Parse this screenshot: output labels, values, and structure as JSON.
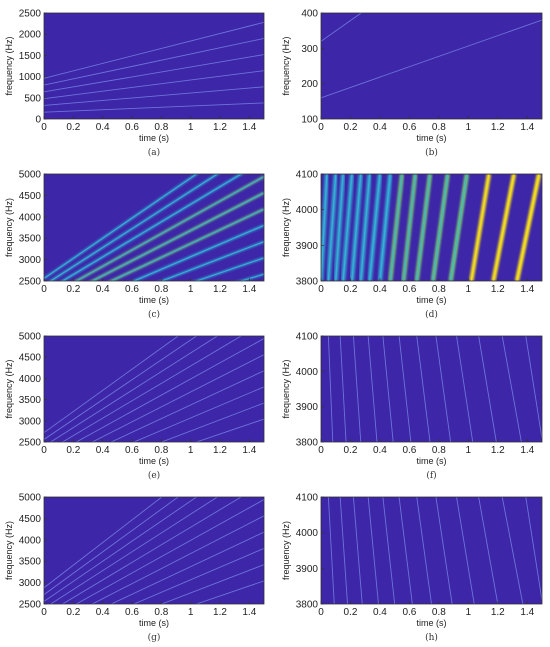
{
  "colors": {
    "background": "#3d26a8",
    "line_faint": "#7a86e8",
    "line_cyan": "#33b7d8",
    "line_green": "#79d36b",
    "line_yellow": "#f5df1b",
    "axis": "#333333"
  },
  "chart_data": [
    {
      "type": "heatmap",
      "panel": "(a)",
      "xlabel": "time (s)",
      "ylabel": "frequency (Hz)",
      "xlim": [
        0,
        1.5
      ],
      "ylim": [
        0,
        2500
      ],
      "xticks": [
        0,
        0.2,
        0.4,
        0.6,
        0.8,
        1,
        1.2,
        1.4
      ],
      "xtick_labels": [
        "0",
        "0.2",
        "0.4",
        "0.6",
        "0.8",
        "1",
        "1.2",
        "1.4"
      ],
      "yticks": [
        0,
        500,
        1000,
        1500,
        2000,
        2500
      ],
      "ytick_labels": [
        "0",
        "500",
        "1000",
        "1500",
        "2000",
        "2500"
      ],
      "series": [
        {
          "x": [
            0,
            1.5
          ],
          "y": [
            160,
            380
          ]
        },
        {
          "x": [
            0,
            1.5
          ],
          "y": [
            320,
            760
          ]
        },
        {
          "x": [
            0,
            1.5
          ],
          "y": [
            480,
            1140
          ]
        },
        {
          "x": [
            0,
            1.5
          ],
          "y": [
            640,
            1520
          ]
        },
        {
          "x": [
            0,
            1.5
          ],
          "y": [
            800,
            1900
          ]
        },
        {
          "x": [
            0,
            1.5
          ],
          "y": [
            960,
            2280
          ]
        }
      ],
      "style": "faint"
    },
    {
      "type": "heatmap",
      "panel": "(b)",
      "xlabel": "time (s)",
      "ylabel": "frequency (Hz)",
      "xlim": [
        0,
        1.5
      ],
      "ylim": [
        100,
        400
      ],
      "xticks": [
        0,
        0.2,
        0.4,
        0.6,
        0.8,
        1,
        1.2,
        1.4
      ],
      "xtick_labels": [
        "0",
        "0.2",
        "0.4",
        "0.6",
        "0.8",
        "1",
        "1.2",
        "1.4"
      ],
      "yticks": [
        100,
        200,
        300,
        400
      ],
      "ytick_labels": [
        "100",
        "200",
        "300",
        "400"
      ],
      "series": [
        {
          "x": [
            0,
            1.5
          ],
          "y": [
            160,
            380
          ]
        },
        {
          "x": [
            0,
            1.5
          ],
          "y": [
            320,
            760
          ]
        }
      ],
      "style": "faint"
    },
    {
      "type": "heatmap",
      "panel": "(c)",
      "xlabel": "time (s)",
      "ylabel": "frequency (Hz)",
      "xlim": [
        0,
        1.5
      ],
      "ylim": [
        2500,
        5000
      ],
      "xticks": [
        0,
        0.2,
        0.4,
        0.6,
        0.8,
        1,
        1.2,
        1.4
      ],
      "xtick_labels": [
        "0",
        "0.2",
        "0.4",
        "0.6",
        "0.8",
        "1",
        "1.2",
        "1.4"
      ],
      "yticks": [
        2500,
        3000,
        3500,
        4000,
        4500,
        5000
      ],
      "ytick_labels": [
        "2500",
        "3000",
        "3500",
        "4000",
        "4500",
        "5000"
      ],
      "series": [
        {
          "x": [
            0,
            1.5
          ],
          "y": [
            2560,
            6080
          ],
          "level": 0.45
        },
        {
          "x": [
            0,
            1.5
          ],
          "y": [
            2400,
            5700
          ],
          "level": 0.55
        },
        {
          "x": [
            0,
            1.5
          ],
          "y": [
            2240,
            5320
          ],
          "level": 0.6
        },
        {
          "x": [
            0,
            1.5
          ],
          "y": [
            2080,
            4940
          ],
          "level": 0.7
        },
        {
          "x": [
            0,
            1.5
          ],
          "y": [
            1920,
            4560
          ],
          "level": 0.85
        },
        {
          "x": [
            0,
            1.5
          ],
          "y": [
            1760,
            4180
          ],
          "level": 0.8
        },
        {
          "x": [
            0,
            1.5
          ],
          "y": [
            1600,
            3800
          ],
          "level": 0.65
        },
        {
          "x": [
            0,
            1.5
          ],
          "y": [
            1440,
            3420
          ],
          "level": 0.5
        },
        {
          "x": [
            0,
            1.5
          ],
          "y": [
            1280,
            3040
          ],
          "level": 0.4
        },
        {
          "x": [
            0,
            1.5
          ],
          "y": [
            1120,
            2660
          ],
          "level": 0.3
        }
      ],
      "style": "bright"
    },
    {
      "type": "heatmap",
      "panel": "(d)",
      "xlabel": "time (s)",
      "ylabel": "frequency (Hz)",
      "xlim": [
        0,
        1.5
      ],
      "ylim": [
        3800,
        4100
      ],
      "xticks": [
        0,
        0.2,
        0.4,
        0.6,
        0.8,
        1,
        1.2,
        1.4
      ],
      "xtick_labels": [
        "0",
        "0.2",
        "0.4",
        "0.6",
        "0.8",
        "1",
        "1.2",
        "1.4"
      ],
      "yticks": [
        3800,
        3900,
        4000,
        4100
      ],
      "ytick_labels": [
        "3800",
        "3900",
        "4000",
        "4100"
      ],
      "series": [
        {
          "x": [
            0.0,
            0.04
          ],
          "y": [
            3800,
            4100
          ],
          "level": 0.55
        },
        {
          "x": [
            0.05,
            0.1
          ],
          "y": [
            3800,
            4100
          ],
          "level": 0.55
        },
        {
          "x": [
            0.1,
            0.15
          ],
          "y": [
            3800,
            4100
          ],
          "level": 0.55
        },
        {
          "x": [
            0.15,
            0.21
          ],
          "y": [
            3800,
            4100
          ],
          "level": 0.6
        },
        {
          "x": [
            0.21,
            0.27
          ],
          "y": [
            3800,
            4100
          ],
          "level": 0.6
        },
        {
          "x": [
            0.27,
            0.33
          ],
          "y": [
            3800,
            4100
          ],
          "level": 0.6
        },
        {
          "x": [
            0.33,
            0.4
          ],
          "y": [
            3800,
            4100
          ],
          "level": 0.65
        },
        {
          "x": [
            0.4,
            0.47
          ],
          "y": [
            3800,
            4100
          ],
          "level": 0.65
        },
        {
          "x": [
            0.47,
            0.55
          ],
          "y": [
            3800,
            4100
          ],
          "level": 0.7
        },
        {
          "x": [
            0.56,
            0.64
          ],
          "y": [
            3800,
            4100
          ],
          "level": 0.7
        },
        {
          "x": [
            0.65,
            0.74
          ],
          "y": [
            3800,
            4100
          ],
          "level": 0.75
        },
        {
          "x": [
            0.76,
            0.86
          ],
          "y": [
            3800,
            4100
          ],
          "level": 0.8
        },
        {
          "x": [
            0.88,
            0.99
          ],
          "y": [
            3800,
            4100
          ],
          "level": 0.85
        },
        {
          "x": [
            1.02,
            1.14
          ],
          "y": [
            3800,
            4100
          ],
          "level": 0.9
        },
        {
          "x": [
            1.17,
            1.31
          ],
          "y": [
            3800,
            4100
          ],
          "level": 0.95
        },
        {
          "x": [
            1.33,
            1.48
          ],
          "y": [
            3800,
            4100
          ],
          "level": 1.0
        }
      ],
      "style": "wide"
    },
    {
      "type": "heatmap",
      "panel": "(e)",
      "xlabel": "time (s)",
      "ylabel": "frequency (Hz)",
      "xlim": [
        0,
        1.5
      ],
      "ylim": [
        2500,
        5000
      ],
      "xticks": [
        0,
        0.2,
        0.4,
        0.6,
        0.8,
        1,
        1.2,
        1.4
      ],
      "xtick_labels": [
        "0",
        "0.2",
        "0.4",
        "0.6",
        "0.8",
        "1",
        "1.2",
        "1.4"
      ],
      "yticks": [
        2500,
        3000,
        3500,
        4000,
        4500,
        5000
      ],
      "ytick_labels": [
        "2500",
        "3000",
        "3500",
        "4000",
        "4500",
        "5000"
      ],
      "series": [
        {
          "x": [
            0,
            1.5
          ],
          "y": [
            2720,
            6460
          ]
        },
        {
          "x": [
            0,
            1.5
          ],
          "y": [
            2560,
            6080
          ]
        },
        {
          "x": [
            0,
            1.5
          ],
          "y": [
            2400,
            5700
          ]
        },
        {
          "x": [
            0,
            1.5
          ],
          "y": [
            2240,
            5320
          ]
        },
        {
          "x": [
            0,
            1.5
          ],
          "y": [
            2080,
            4940
          ]
        },
        {
          "x": [
            0,
            1.5
          ],
          "y": [
            1920,
            4560
          ]
        },
        {
          "x": [
            0,
            1.5
          ],
          "y": [
            1760,
            4180
          ]
        },
        {
          "x": [
            0,
            1.5
          ],
          "y": [
            1600,
            3800
          ]
        },
        {
          "x": [
            0,
            1.5
          ],
          "y": [
            1440,
            3420
          ]
        },
        {
          "x": [
            0,
            1.5
          ],
          "y": [
            1280,
            3040
          ]
        }
      ],
      "style": "faint"
    },
    {
      "type": "heatmap",
      "panel": "(f)",
      "xlabel": "time (s)",
      "ylabel": "frequency (Hz)",
      "xlim": [
        0,
        1.5
      ],
      "ylim": [
        3800,
        4100
      ],
      "xticks": [
        0,
        0.2,
        0.4,
        0.6,
        0.8,
        1,
        1.2,
        1.4
      ],
      "xtick_labels": [
        "0",
        "0.2",
        "0.4",
        "0.6",
        "0.8",
        "1",
        "1.2",
        "1.4"
      ],
      "yticks": [
        3800,
        3900,
        4000,
        4100
      ],
      "ytick_labels": [
        "3800",
        "3900",
        "4000",
        "4100"
      ],
      "series": [
        {
          "x": [
            0.08,
            0.05
          ],
          "y": [
            3800,
            4100
          ]
        },
        {
          "x": [
            0.17,
            0.13
          ],
          "y": [
            3800,
            4100
          ]
        },
        {
          "x": [
            0.27,
            0.22
          ],
          "y": [
            3800,
            4100
          ]
        },
        {
          "x": [
            0.38,
            0.32
          ],
          "y": [
            3800,
            4100
          ]
        },
        {
          "x": [
            0.49,
            0.42
          ],
          "y": [
            3800,
            4100
          ]
        },
        {
          "x": [
            0.61,
            0.53
          ],
          "y": [
            3800,
            4100
          ]
        },
        {
          "x": [
            0.74,
            0.65
          ],
          "y": [
            3800,
            4100
          ]
        },
        {
          "x": [
            0.88,
            0.78
          ],
          "y": [
            3800,
            4100
          ]
        },
        {
          "x": [
            1.03,
            0.92
          ],
          "y": [
            3800,
            4100
          ]
        },
        {
          "x": [
            1.19,
            1.07
          ],
          "y": [
            3800,
            4100
          ]
        },
        {
          "x": [
            1.36,
            1.23
          ],
          "y": [
            3800,
            4100
          ]
        },
        {
          "x": [
            1.5,
            1.39
          ],
          "y": [
            3810,
            4100
          ]
        }
      ],
      "style": "faint"
    },
    {
      "type": "heatmap",
      "panel": "(g)",
      "xlabel": "time (s)",
      "ylabel": "frequency (Hz)",
      "xlim": [
        0,
        1.5
      ],
      "ylim": [
        2500,
        5000
      ],
      "xticks": [
        0,
        0.2,
        0.4,
        0.6,
        0.8,
        1,
        1.2,
        1.4
      ],
      "xtick_labels": [
        "0",
        "0.2",
        "0.4",
        "0.6",
        "0.8",
        "1",
        "1.2",
        "1.4"
      ],
      "yticks": [
        2500,
        3000,
        3500,
        4000,
        4500,
        5000
      ],
      "ytick_labels": [
        "2500",
        "3000",
        "3500",
        "4000",
        "4500",
        "5000"
      ],
      "series": [
        {
          "x": [
            0,
            1.5
          ],
          "y": [
            2880,
            6840
          ]
        },
        {
          "x": [
            0,
            1.5
          ],
          "y": [
            2720,
            6460
          ]
        },
        {
          "x": [
            0,
            1.5
          ],
          "y": [
            2560,
            6080
          ]
        },
        {
          "x": [
            0,
            1.5
          ],
          "y": [
            2400,
            5700
          ]
        },
        {
          "x": [
            0,
            1.5
          ],
          "y": [
            2240,
            5320
          ]
        },
        {
          "x": [
            0,
            1.5
          ],
          "y": [
            2080,
            4940
          ]
        },
        {
          "x": [
            0,
            1.5
          ],
          "y": [
            1920,
            4560
          ]
        },
        {
          "x": [
            0,
            1.5
          ],
          "y": [
            1760,
            4180
          ]
        },
        {
          "x": [
            0,
            1.5
          ],
          "y": [
            1600,
            3800
          ]
        },
        {
          "x": [
            0,
            1.5
          ],
          "y": [
            1440,
            3420
          ]
        },
        {
          "x": [
            0,
            1.5
          ],
          "y": [
            1280,
            3040
          ]
        }
      ],
      "style": "faint"
    },
    {
      "type": "heatmap",
      "panel": "(h)",
      "xlabel": "time (s)",
      "ylabel": "frequency (Hz)",
      "xlim": [
        0,
        1.5
      ],
      "ylim": [
        3800,
        4100
      ],
      "xticks": [
        0,
        0.2,
        0.4,
        0.6,
        0.8,
        1,
        1.2,
        1.4
      ],
      "xtick_labels": [
        "0",
        "0.2",
        "0.4",
        "0.6",
        "0.8",
        "1",
        "1.2",
        "1.4"
      ],
      "yticks": [
        3800,
        3900,
        4000,
        4100
      ],
      "ytick_labels": [
        "3800",
        "3900",
        "4000",
        "4100"
      ],
      "series": [
        {
          "x": [
            0.09,
            0.05
          ],
          "y": [
            3800,
            4100
          ]
        },
        {
          "x": [
            0.18,
            0.13
          ],
          "y": [
            3800,
            4100
          ]
        },
        {
          "x": [
            0.28,
            0.22
          ],
          "y": [
            3800,
            4100
          ]
        },
        {
          "x": [
            0.39,
            0.32
          ],
          "y": [
            3800,
            4100
          ]
        },
        {
          "x": [
            0.5,
            0.42
          ],
          "y": [
            3800,
            4100
          ]
        },
        {
          "x": [
            0.62,
            0.53
          ],
          "y": [
            3800,
            4100
          ]
        },
        {
          "x": [
            0.75,
            0.65
          ],
          "y": [
            3800,
            4100
          ]
        },
        {
          "x": [
            0.89,
            0.78
          ],
          "y": [
            3800,
            4100
          ]
        },
        {
          "x": [
            1.04,
            0.92
          ],
          "y": [
            3800,
            4100
          ]
        },
        {
          "x": [
            1.2,
            1.07
          ],
          "y": [
            3800,
            4100
          ]
        },
        {
          "x": [
            1.37,
            1.23
          ],
          "y": [
            3800,
            4100
          ]
        },
        {
          "x": [
            1.5,
            1.39
          ],
          "y": [
            3810,
            4100
          ]
        }
      ],
      "style": "faint"
    }
  ]
}
